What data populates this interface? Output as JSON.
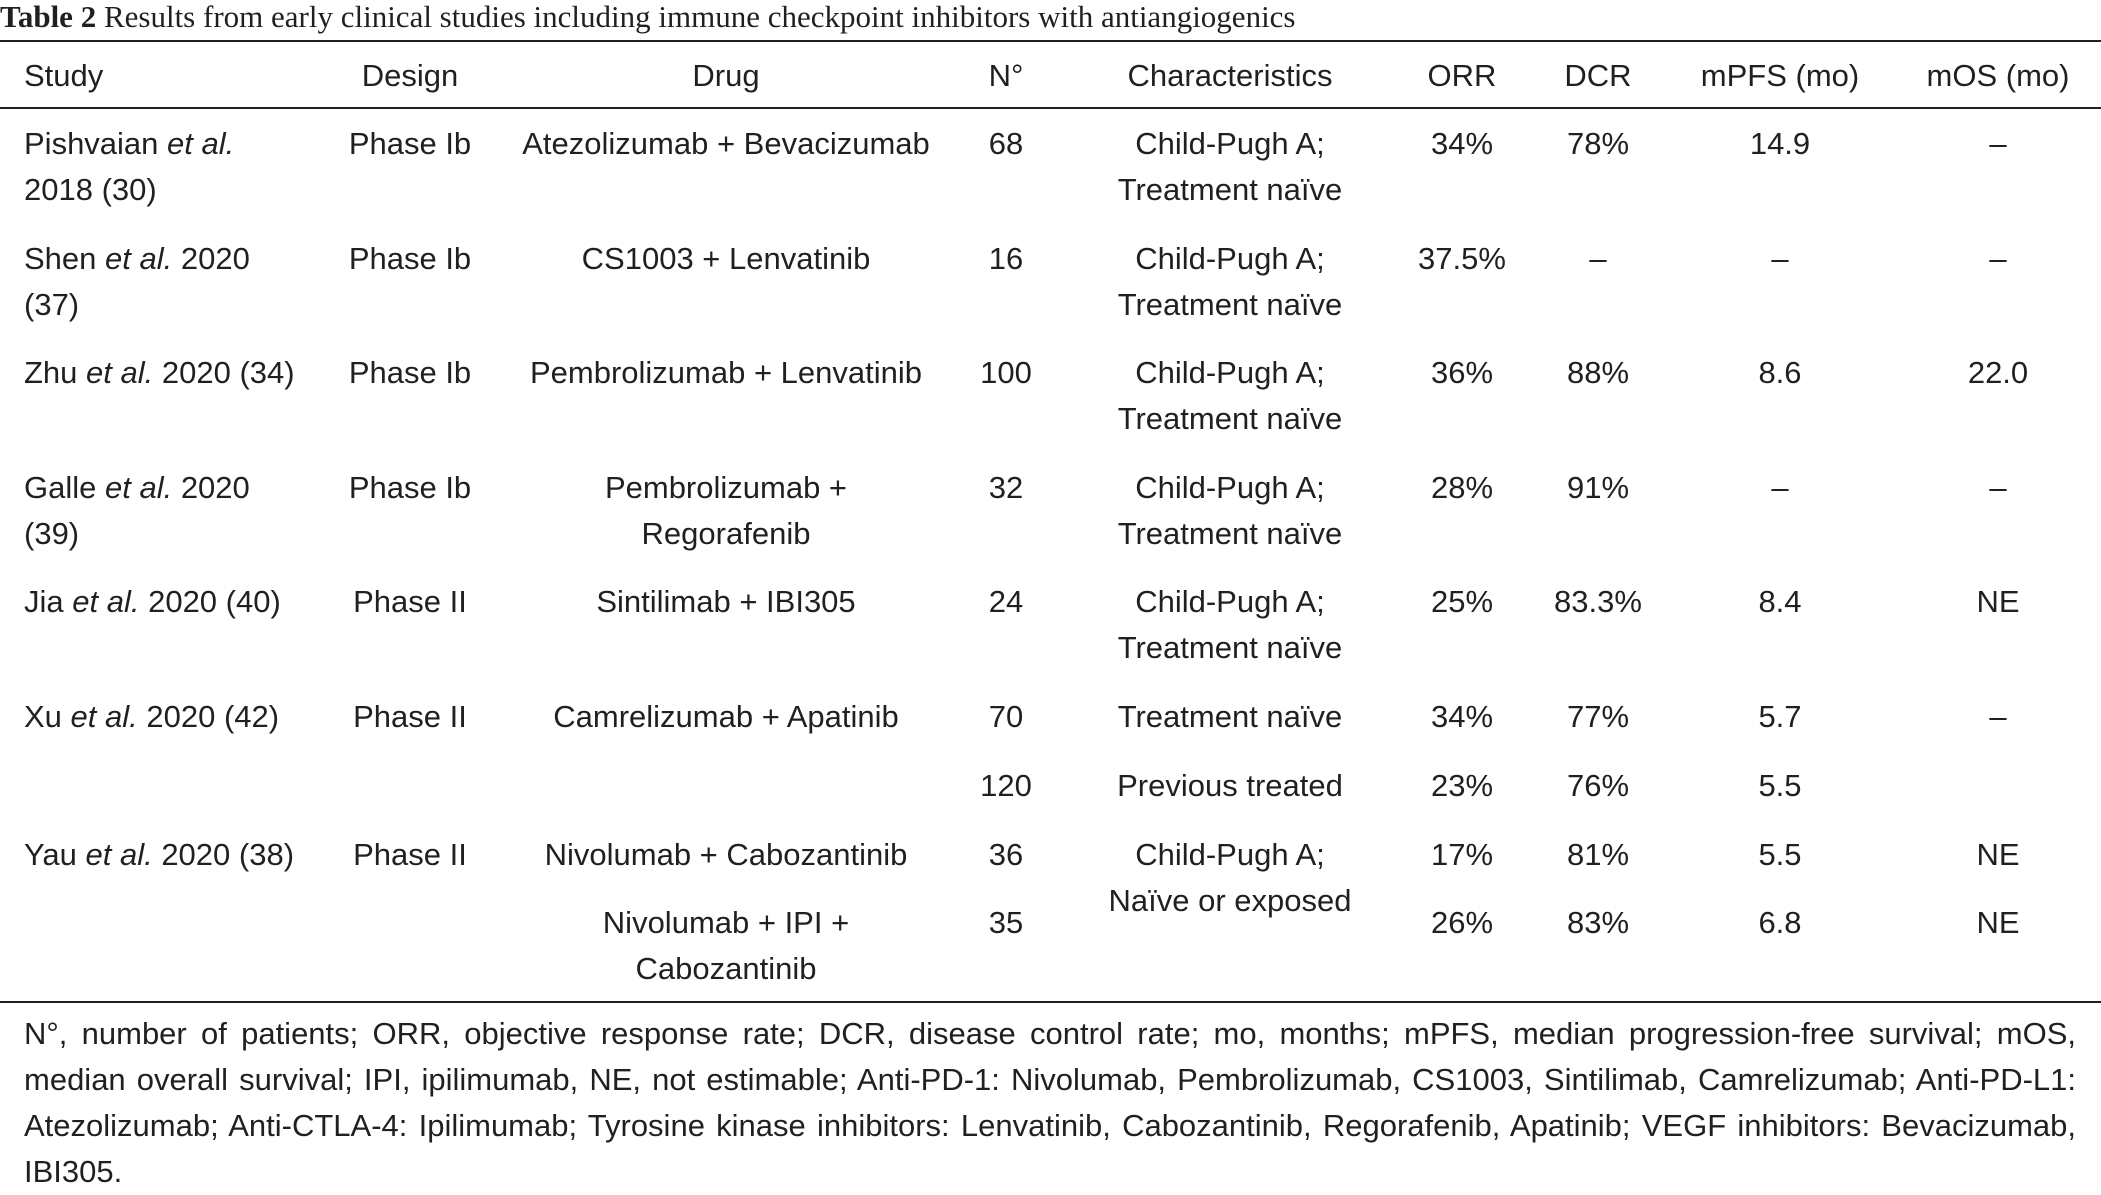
{
  "caption": {
    "label": "Table 2",
    "text": " Results from early clinical studies including immune checkpoint inhibitors with antiangiogenics"
  },
  "headers": {
    "study": "Study",
    "design": "Design",
    "drug": "Drug",
    "n": "N°",
    "characteristics": "Characteristics",
    "orr": "ORR",
    "dcr": "DCR",
    "mpfs": "mPFS (mo)",
    "mos": "mOS (mo)"
  },
  "rows": [
    {
      "study_pre": "Pishvaian ",
      "study_etal": "et al.",
      "study_line2": "2018 (30)",
      "design": "Phase Ib",
      "drug1": "Atezolizumab + Bevacizumab",
      "drug2": "",
      "n": "68",
      "char1": "Child-Pugh A;",
      "char2": "Treatment naïve",
      "orr": "34%",
      "dcr": "78%",
      "mpfs": "14.9",
      "mos": "–"
    },
    {
      "study_pre": "Shen ",
      "study_etal": "et al.",
      "study_post": " 2020",
      "study_line2": "(37)",
      "design": "Phase Ib",
      "drug1": "CS1003 + Lenvatinib",
      "drug2": "",
      "n": "16",
      "char1": "Child-Pugh A;",
      "char2": "Treatment naïve",
      "orr": "37.5%",
      "dcr": "–",
      "mpfs": "–",
      "mos": "–"
    },
    {
      "study_pre": "Zhu ",
      "study_etal": "et al.",
      "study_post": " 2020 (34)",
      "design": "Phase Ib",
      "drug1": "Pembrolizumab + Lenvatinib",
      "drug2": "",
      "n": "100",
      "char1": "Child-Pugh A;",
      "char2": "Treatment naïve",
      "orr": "36%",
      "dcr": "88%",
      "mpfs": "8.6",
      "mos": "22.0"
    },
    {
      "study_pre": "Galle ",
      "study_etal": "et al.",
      "study_post": " 2020",
      "study_line2": "(39)",
      "design": "Phase Ib",
      "drug1": "Pembrolizumab +",
      "drug2": "Regorafenib",
      "n": "32",
      "char1": "Child-Pugh A;",
      "char2": "Treatment naïve",
      "orr": "28%",
      "dcr": "91%",
      "mpfs": "–",
      "mos": "–"
    },
    {
      "study_pre": "Jia ",
      "study_etal": "et al.",
      "study_post": " 2020 (40)",
      "design": "Phase II",
      "drug1": "Sintilimab + IBI305",
      "drug2": "",
      "n": "24",
      "char1": "Child-Pugh A;",
      "char2": "Treatment naïve",
      "orr": "25%",
      "dcr": "83.3%",
      "mpfs": "8.4",
      "mos": "NE"
    },
    {
      "study_pre": "Xu ",
      "study_etal": "et al.",
      "study_post": " 2020 (42)",
      "design": "Phase II",
      "drug1": "Camrelizumab + Apatinib",
      "drug2": "",
      "n": "70",
      "char1": "Treatment naïve",
      "char2": "",
      "orr": "34%",
      "dcr": "77%",
      "mpfs": "5.7",
      "mos": "–"
    },
    {
      "study_pre": "",
      "study_etal": "",
      "study_post": "",
      "design": "",
      "drug1": "",
      "drug2": "",
      "n": "120",
      "char1": "Previous treated",
      "char2": "",
      "orr": "23%",
      "dcr": "76%",
      "mpfs": "5.5",
      "mos": ""
    },
    {
      "study_pre": "Yau ",
      "study_etal": "et al.",
      "study_post": " 2020 (38)",
      "design": "Phase II",
      "drug1": "Nivolumab + Cabozantinib",
      "drug2": "",
      "n": "36",
      "char1": "Child-Pugh A;",
      "char2": "Naïve or exposed",
      "orr": "17%",
      "dcr": "81%",
      "mpfs": "5.5",
      "mos": "NE"
    },
    {
      "study_pre": "",
      "study_etal": "",
      "study_post": "",
      "design": "",
      "drug1": "Nivolumab + IPI +",
      "drug2": "Cabozantinib",
      "n": "35",
      "char1": "",
      "char2": "",
      "orr": "26%",
      "dcr": "83%",
      "mpfs": "6.8",
      "mos": "NE"
    }
  ],
  "footnote": "N°, number of patients; ORR, objective response rate; DCR, disease control rate; mo, months; mPFS, median progression-free survival; mOS, median overall survival; IPI, ipilimumab, NE, not estimable; Anti-PD-1: Nivolumab, Pembrolizumab, CS1003, Sintilimab, Camrelizumab; Anti-PD-L1: Atezolizumab; Anti-CTLA-4: Ipilimumab; Tyrosine kinase inhibitors: Lenvatinib, Cabozantinib, Regorafenib, Apatinib; VEGF inhibitors: Bevacizumab, IBI305."
}
